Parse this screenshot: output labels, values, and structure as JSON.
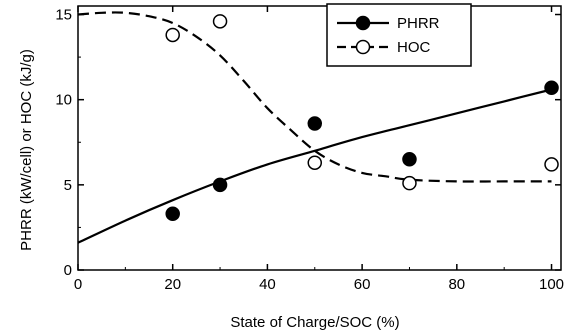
{
  "chart_data": {
    "type": "scatter",
    "xlabel": "State of Charge/SOC (%)",
    "ylabel": "PHRR (kW/cell) or HOC (kJ/g)",
    "xlim": [
      0,
      102
    ],
    "ylim": [
      0,
      15.5
    ],
    "xticks": [
      0,
      20,
      40,
      60,
      80,
      100
    ],
    "yticks": [
      0,
      5,
      10,
      15
    ],
    "legend_position": "top-center",
    "series": [
      {
        "name": "PHRR",
        "marker": "filled-circle",
        "line_style": "solid",
        "points": [
          {
            "x": 20,
            "y": 3.3
          },
          {
            "x": 30,
            "y": 5.0
          },
          {
            "x": 50,
            "y": 8.6
          },
          {
            "x": 70,
            "y": 6.5
          },
          {
            "x": 100,
            "y": 10.7
          }
        ],
        "fit_curve": [
          {
            "x": 0,
            "y": 1.6
          },
          {
            "x": 10,
            "y": 2.9
          },
          {
            "x": 20,
            "y": 4.1
          },
          {
            "x": 30,
            "y": 5.2
          },
          {
            "x": 40,
            "y": 6.2
          },
          {
            "x": 50,
            "y": 7.0
          },
          {
            "x": 60,
            "y": 7.8
          },
          {
            "x": 70,
            "y": 8.5
          },
          {
            "x": 80,
            "y": 9.2
          },
          {
            "x": 90,
            "y": 9.9
          },
          {
            "x": 100,
            "y": 10.6
          }
        ]
      },
      {
        "name": "HOC",
        "marker": "open-circle",
        "line_style": "dashed",
        "points": [
          {
            "x": 20,
            "y": 13.8
          },
          {
            "x": 30,
            "y": 14.6
          },
          {
            "x": 50,
            "y": 6.3
          },
          {
            "x": 70,
            "y": 5.1
          },
          {
            "x": 100,
            "y": 6.2
          }
        ],
        "fit_curve": [
          {
            "x": 0,
            "y": 15.0
          },
          {
            "x": 5,
            "y": 15.1
          },
          {
            "x": 10,
            "y": 15.1
          },
          {
            "x": 15,
            "y": 14.9
          },
          {
            "x": 20,
            "y": 14.5
          },
          {
            "x": 25,
            "y": 13.7
          },
          {
            "x": 30,
            "y": 12.6
          },
          {
            "x": 35,
            "y": 11.1
          },
          {
            "x": 40,
            "y": 9.5
          },
          {
            "x": 45,
            "y": 8.2
          },
          {
            "x": 50,
            "y": 7.0
          },
          {
            "x": 55,
            "y": 6.2
          },
          {
            "x": 60,
            "y": 5.7
          },
          {
            "x": 65,
            "y": 5.5
          },
          {
            "x": 70,
            "y": 5.3
          },
          {
            "x": 80,
            "y": 5.2
          },
          {
            "x": 90,
            "y": 5.2
          },
          {
            "x": 100,
            "y": 5.2
          }
        ]
      }
    ]
  }
}
